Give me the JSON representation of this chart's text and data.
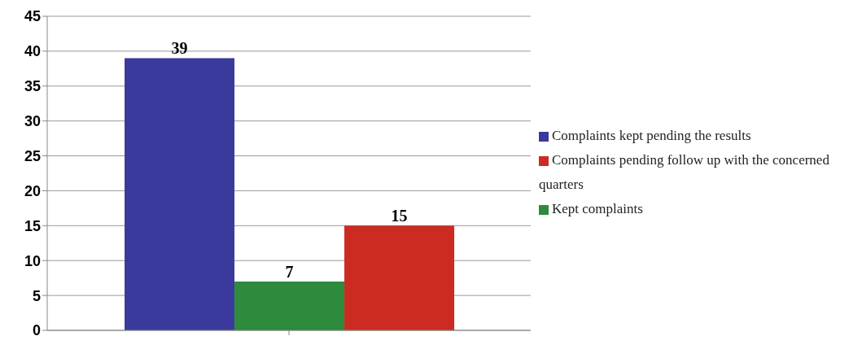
{
  "chart_data": {
    "type": "bar",
    "categories": [
      null
    ],
    "series": [
      {
        "name": "Complaints kept pending the results",
        "color": "#3a3a9c",
        "values": [
          39
        ]
      },
      {
        "name": "Kept complaints",
        "color": "#2e8a3c",
        "values": [
          7
        ]
      },
      {
        "name": "Complaints pending follow up with the concerned quarters",
        "color": "#cc2b22",
        "values": [
          15
        ]
      }
    ],
    "ylim": [
      0,
      45
    ],
    "yticks": [
      0,
      5,
      10,
      15,
      20,
      25,
      30,
      35,
      40,
      45
    ],
    "grid": "y",
    "legend": "right",
    "data_labels": true
  }
}
